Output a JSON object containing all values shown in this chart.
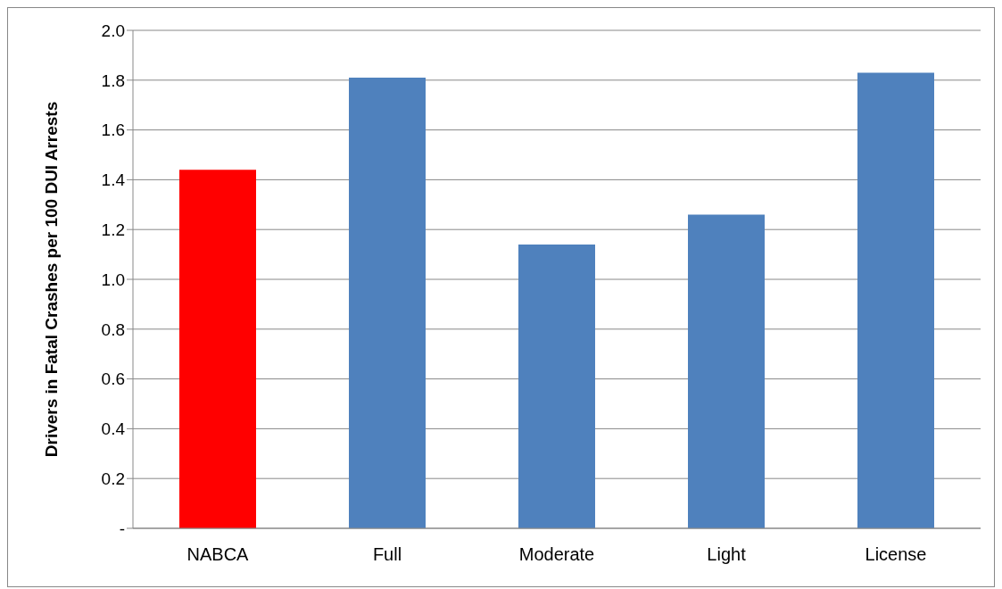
{
  "chart_data": {
    "type": "bar",
    "ylabel": "Drivers in Fatal Crashes per 100 DUI Arrests",
    "categories": [
      "NABCA",
      "Full",
      "Moderate",
      "Light",
      "License"
    ],
    "values": [
      1.44,
      1.81,
      1.14,
      1.26,
      1.83
    ],
    "colors": [
      "#ff0000",
      "#4f81bd",
      "#4f81bd",
      "#4f81bd",
      "#4f81bd"
    ],
    "ylim": [
      0,
      2.0
    ],
    "yticks": [
      {
        "value": 0,
        "label": "-"
      },
      {
        "value": 0.2,
        "label": "0.2"
      },
      {
        "value": 0.4,
        "label": "0.4"
      },
      {
        "value": 0.6,
        "label": "0.6"
      },
      {
        "value": 0.8,
        "label": "0.8"
      },
      {
        "value": 1.0,
        "label": "1.0"
      },
      {
        "value": 1.2,
        "label": "1.2"
      },
      {
        "value": 1.4,
        "label": "1.4"
      },
      {
        "value": 1.6,
        "label": "1.6"
      },
      {
        "value": 1.8,
        "label": "1.8"
      },
      {
        "value": 2.0,
        "label": "2.0"
      }
    ],
    "grid": "y"
  }
}
